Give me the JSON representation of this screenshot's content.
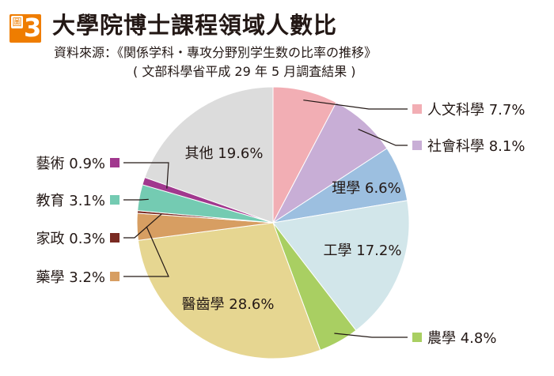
{
  "figure": {
    "badge_word": "圖",
    "badge_number": "3",
    "title": "大學院博士課程領域人數比",
    "source_line1": "資料來源：《関係学科・專攻分野別学生数の比率の推移》",
    "source_line2": "( 文部科學省平成 29 年 5 月調査結果 )"
  },
  "colors": {
    "badge": "#ef7d00",
    "leader_line": "#231815"
  },
  "chart_data": {
    "type": "pie",
    "start": "12 o'clock",
    "direction": "clockwise",
    "unit": "%",
    "slices": [
      {
        "name": "人文科學",
        "value": 7.7,
        "label": "人文科學 7.7%",
        "color": "#f2aeb4",
        "label_place": "outside"
      },
      {
        "name": "社會科學",
        "value": 8.1,
        "label": "社會科學 8.1%",
        "color": "#c8aed6",
        "label_place": "outside"
      },
      {
        "name": "理學",
        "value": 6.6,
        "label": "理學 6.6%",
        "color": "#9cbfe0",
        "label_place": "inside"
      },
      {
        "name": "工學",
        "value": 17.2,
        "label": "工學 17.2%",
        "color": "#d2e6ea",
        "label_place": "inside"
      },
      {
        "name": "農學",
        "value": 4.8,
        "label": "農學 4.8%",
        "color": "#a9cf62",
        "label_place": "outside"
      },
      {
        "name": "醫齒學",
        "value": 28.6,
        "label": "醫齒學 28.6%",
        "color": "#e6d691",
        "label_place": "inside"
      },
      {
        "name": "藥學",
        "value": 3.2,
        "label": "藥學 3.2%",
        "color": "#d79e62",
        "label_place": "outside"
      },
      {
        "name": "家政",
        "value": 0.3,
        "label": "家政 0.3%",
        "color": "#7a2a22",
        "label_place": "outside"
      },
      {
        "name": "教育",
        "value": 3.1,
        "label": "教育 3.1%",
        "color": "#74cbb2",
        "label_place": "outside"
      },
      {
        "name": "藝術",
        "value": 0.9,
        "label": "藝術 0.9%",
        "color": "#a1388e",
        "label_place": "outside"
      },
      {
        "name": "其他",
        "value": 19.6,
        "label": "其他 19.6%",
        "color": "#dcdcdc",
        "label_place": "inside"
      }
    ]
  }
}
